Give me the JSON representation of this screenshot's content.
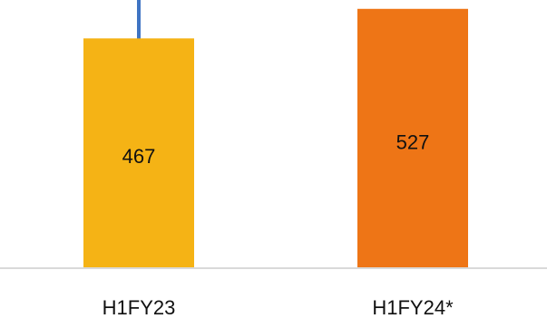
{
  "chart_data": {
    "type": "bar",
    "categories": [
      "H1FY23",
      "H1FY24*"
    ],
    "values": [
      467,
      527
    ],
    "value_labels": [
      "467",
      "527"
    ],
    "ylim": [
      0,
      545
    ],
    "grid": false,
    "title": "",
    "xlabel": "",
    "ylabel": "",
    "colors": {
      "bars": [
        "#f5b315",
        "#ee7516"
      ],
      "connector": "#3f74c3",
      "axis": "#d9d9d9",
      "text": "#111111"
    }
  }
}
